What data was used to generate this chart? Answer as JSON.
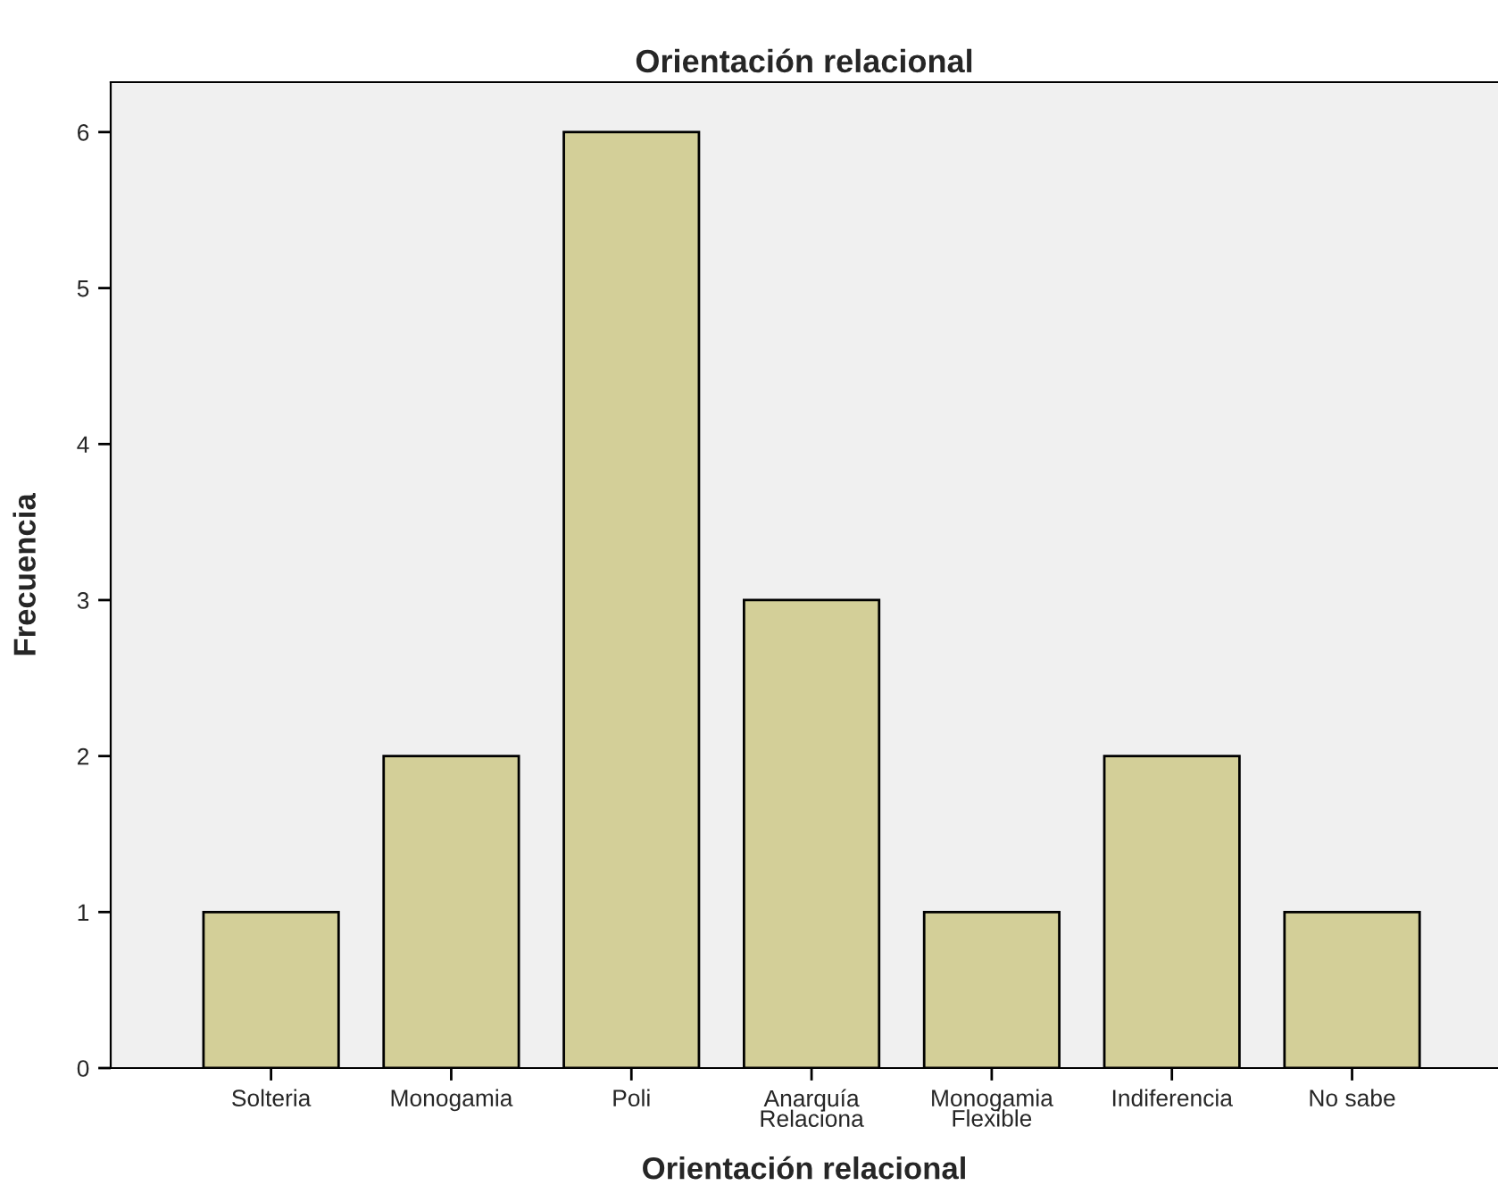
{
  "chart_data": {
    "type": "bar",
    "title": "Orientación relacional",
    "xlabel": "Orientación relacional",
    "ylabel": "Frecuencia",
    "categories": [
      "Solteria",
      "Monogamia",
      "Poli",
      "Anarquía\nRelaciona",
      "Monogamia\nFlexible",
      "Indiferencia",
      "No sabe"
    ],
    "values": [
      1,
      2,
      6,
      3,
      1,
      2,
      1
    ],
    "color": "#d3cf98",
    "ylim": [
      0,
      6.32
    ],
    "yticks": [
      0,
      1,
      2,
      3,
      4,
      5,
      6
    ],
    "grid": false
  }
}
